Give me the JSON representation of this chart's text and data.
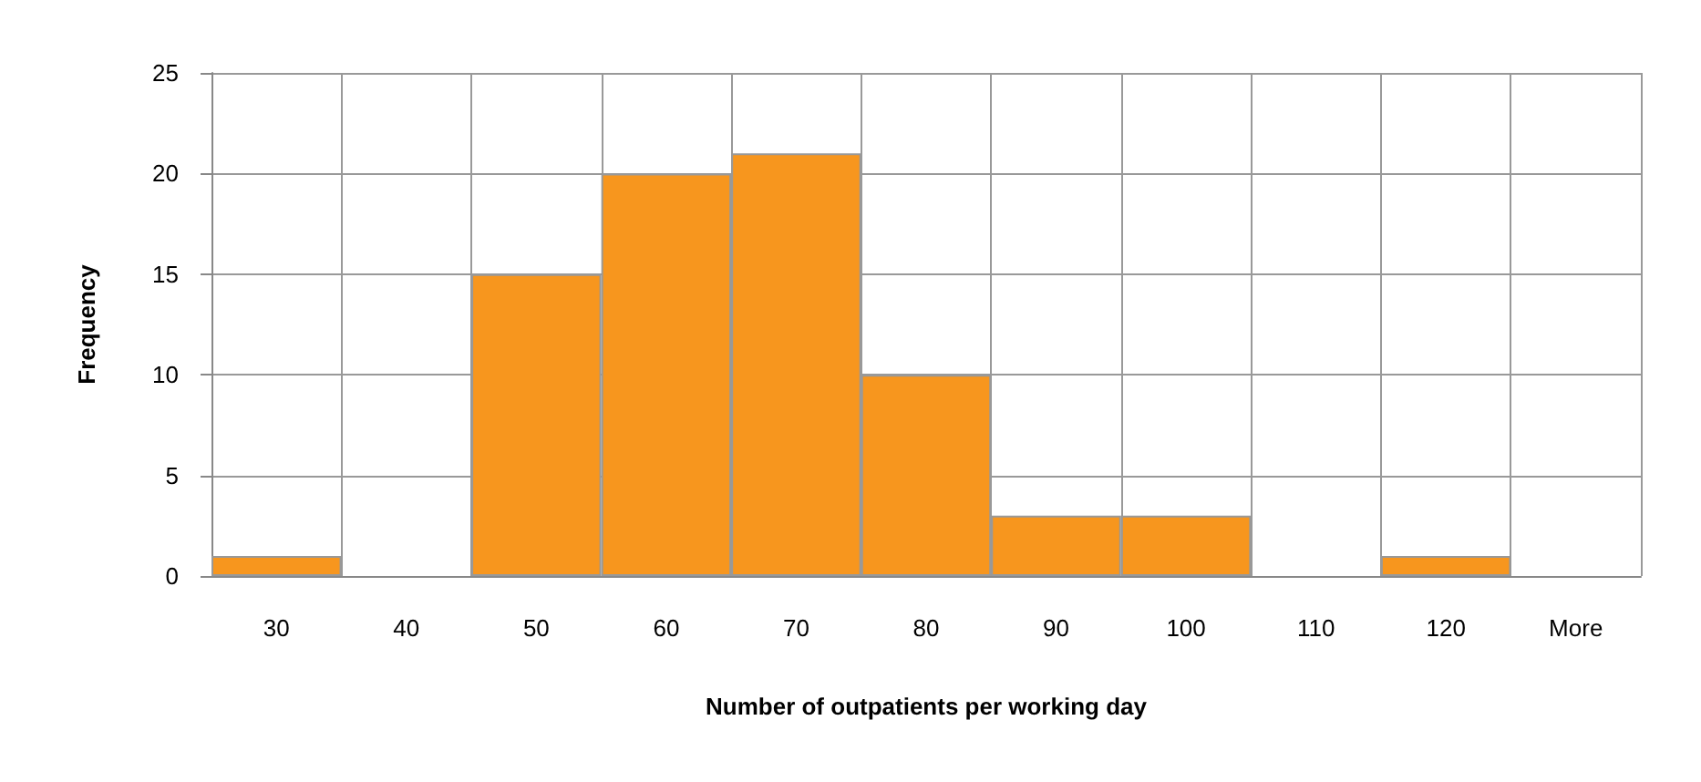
{
  "chart_data": {
    "type": "bar",
    "xlabel": "Number of outpatients per working day",
    "ylabel": "Frequency",
    "categories": [
      "30",
      "40",
      "50",
      "60",
      "70",
      "80",
      "90",
      "100",
      "110",
      "120",
      "More"
    ],
    "values": [
      1,
      0,
      15,
      20,
      21,
      10,
      3,
      3,
      0,
      1,
      0
    ],
    "color": "#f7961e",
    "ylim": [
      0,
      25
    ],
    "yticks": [
      0,
      5,
      10,
      15,
      20,
      25
    ],
    "grid": true
  }
}
